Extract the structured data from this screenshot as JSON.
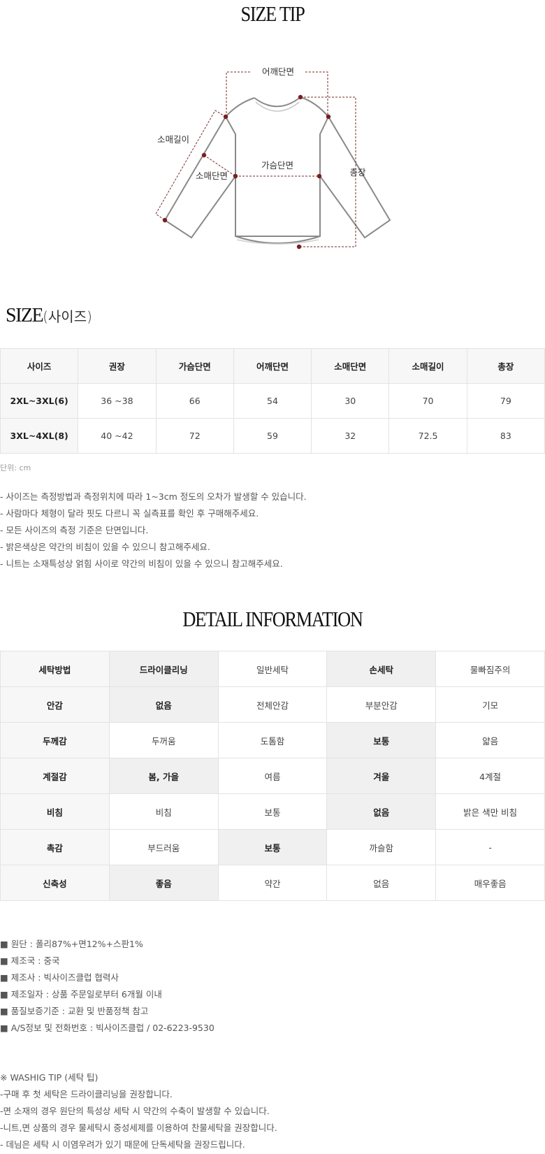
{
  "size_tip": {
    "title": "SIZE TIP",
    "labels": {
      "shoulder": "어깨단면",
      "sleeve_length": "소매길이",
      "sleeve_width": "소매단면",
      "chest": "가슴단면",
      "total_length": "총장"
    },
    "colors": {
      "dashed": "#7a2a2a",
      "dot": "#7a1f1f",
      "outline": "#888888"
    }
  },
  "size": {
    "title": "SIZE",
    "subtitle": "(사이즈)",
    "headers": [
      "사이즈",
      "권장",
      "가슴단면",
      "어깨단면",
      "소매단면",
      "소매길이",
      "총장"
    ],
    "rows": [
      [
        "2XL~3XL(6)",
        "36 ~38",
        "66",
        "54",
        "30",
        "70",
        "79"
      ],
      [
        "3XL~4XL(8)",
        "40 ~42",
        "72",
        "59",
        "32",
        "72.5",
        "83"
      ]
    ],
    "unit": "단위: cm"
  },
  "notes": [
    "- 사이즈는 측정방법과 측정위치에 따라 1~3cm 정도의 오차가 발생할 수 있습니다.",
    "- 사람마다 체형이 달라 핏도 다르니 꼭 실측표를 확인 후 구매해주세요.",
    "- 모든 사이즈의 측정 기준은 단면입니다.",
    "- 밝은색상은 약간의 비침이 있을 수 있으니 참고해주세요.",
    "- 니트는 소재특성상 얽힘 사이로 약간의 비침이 있을 수 있으니 참고해주세요."
  ],
  "detail": {
    "title": "DETAIL INFORMATION",
    "rows": [
      {
        "label": "세탁방법",
        "options": [
          "드라이클리닝",
          "일반세탁",
          "손세탁",
          "물빠짐주의"
        ],
        "selected": [
          0,
          2
        ]
      },
      {
        "label": "안감",
        "options": [
          "없음",
          "전체안감",
          "부분안감",
          "기모"
        ],
        "selected": [
          0
        ]
      },
      {
        "label": "두께감",
        "options": [
          "두꺼움",
          "도톰함",
          "보통",
          "얇음"
        ],
        "selected": [
          2
        ]
      },
      {
        "label": "계절감",
        "options": [
          "봄, 가을",
          "여름",
          "겨울",
          "4계절"
        ],
        "selected": [
          0,
          2
        ]
      },
      {
        "label": "비침",
        "options": [
          "비침",
          "보통",
          "없음",
          "밝은 색만 비침"
        ],
        "selected": [
          2
        ]
      },
      {
        "label": "촉감",
        "options": [
          "부드러움",
          "보통",
          "까슬함",
          "-"
        ],
        "selected": [
          1
        ]
      },
      {
        "label": "신축성",
        "options": [
          "좋음",
          "약간",
          "없음",
          "매우좋음"
        ],
        "selected": [
          0
        ]
      }
    ]
  },
  "specs": [
    "■ 원단 : 폴리87%+면12%+스판1%",
    "■ 제조국 : 중국",
    "■ 제조사 : 빅사이즈클럽 협력사",
    "■ 제조일자 : 상품 주문일로부터 6개월 이내",
    "■ 품질보증기준 : 교환 및 반품정책 참고",
    "■ A/S정보 및 전화번호 : 빅사이즈클럽 / 02-6223-9530"
  ],
  "washing_tip": [
    "※ WASHIG TIP (세탁 팁)",
    "-구매 후 첫 세탁은 드라이클리닝을 권장합니다.",
    "-면 소재의 경우 원단의 특성상 세탁 시 약간의 수축이 발생할 수 있습니다.",
    "-니트,면 상품의 경우 물세탁시 중성세제를 이용하여 찬물세탁을 권장합니다.",
    "- 데님은 세탁 시 이염우려가 있기 때문에 단독세탁을 권장드립니다."
  ]
}
